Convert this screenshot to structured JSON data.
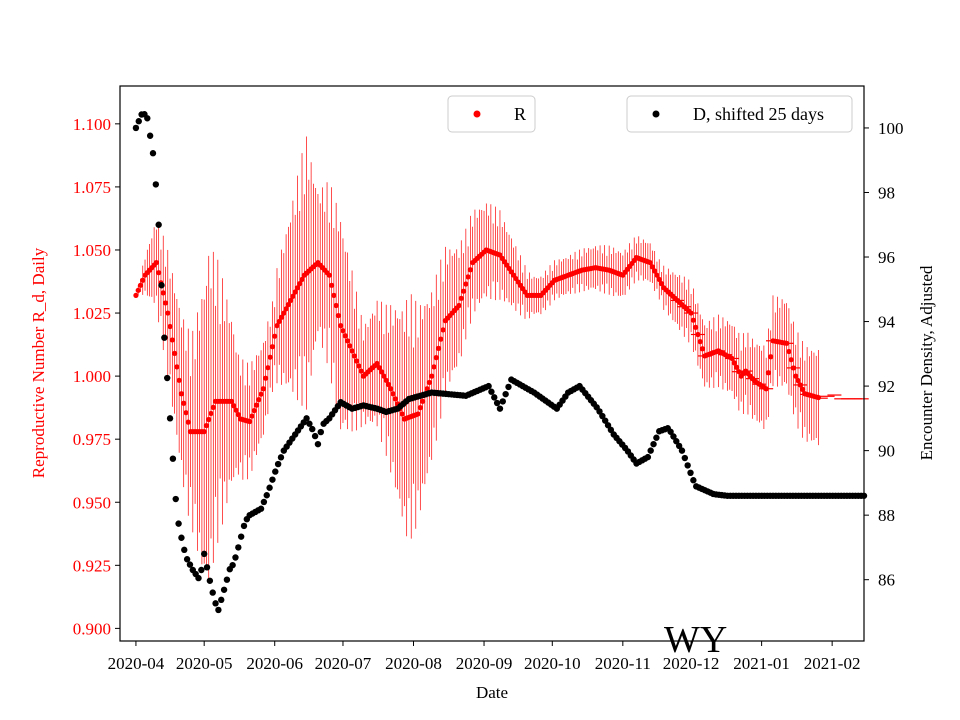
{
  "chart_data": {
    "type": "line",
    "title": "",
    "xlabel": "Date",
    "ylabel_left": "Reproductive Number R_d, Daily",
    "ylabel_right": "Encounter Density, Adjusted",
    "watermark": "WY",
    "x_ticks": [
      "2020-04",
      "2020-05",
      "2020-06",
      "2020-07",
      "2020-08",
      "2020-09",
      "2020-10",
      "2020-11",
      "2020-12",
      "2021-01",
      "2021-02"
    ],
    "x_range_days": [
      -7,
      320
    ],
    "y_left_range": [
      0.895,
      1.115
    ],
    "y_left_ticks": [
      "0.900",
      "0.925",
      "0.950",
      "0.975",
      "1.000",
      "1.025",
      "1.050",
      "1.075",
      "1.100"
    ],
    "y_right_range": [
      84.1,
      101.3
    ],
    "y_right_ticks": [
      "86",
      "88",
      "90",
      "92",
      "94",
      "96",
      "98",
      "100"
    ],
    "legend_R": "R",
    "legend_D": "D, shifted 25 days",
    "colors": {
      "R": "#ff0000",
      "D": "#000000",
      "axis_left": "#ff0000",
      "axis_right": "#000000"
    },
    "series": [
      {
        "name": "R",
        "axis": "left",
        "knots_day": [
          0,
          4,
          9,
          14,
          20,
          24,
          30,
          35,
          42,
          46,
          50,
          56,
          62,
          68,
          74,
          80,
          85,
          90,
          95,
          100,
          106,
          112,
          118,
          124,
          130,
          136,
          142,
          148,
          154,
          160,
          166,
          172,
          178,
          184,
          190,
          196,
          202,
          208,
          214,
          220,
          226,
          232,
          238,
          244,
          250,
          256,
          262,
          266,
          268,
          272,
          277,
          280,
          286,
          290,
          294,
          298,
          302,
          306,
          310,
          316,
          320
        ],
        "knots_value": [
          1.032,
          1.04,
          1.045,
          1.025,
          0.993,
          0.978,
          0.978,
          0.99,
          0.99,
          0.983,
          0.982,
          0.995,
          1.02,
          1.03,
          1.04,
          1.045,
          1.04,
          1.02,
          1.01,
          1.0,
          1.005,
          0.995,
          0.983,
          0.985,
          1.0,
          1.022,
          1.028,
          1.045,
          1.05,
          1.048,
          1.04,
          1.032,
          1.032,
          1.038,
          1.04,
          1.042,
          1.043,
          1.042,
          1.04,
          1.047,
          1.045,
          1.035,
          1.03,
          1.025,
          1.008,
          1.01,
          1.007,
          1.0,
          1.002,
          0.998,
          0.995,
          1.014,
          1.013,
          1.0,
          0.993,
          0.992,
          0.991,
          0.993,
          0.991,
          0.991,
          0.991
        ],
        "error_knots_day": [
          0,
          10,
          25,
          32,
          45,
          60,
          75,
          80,
          90,
          100,
          110,
          120,
          130,
          145,
          160,
          175,
          190,
          210,
          230,
          240,
          260,
          280,
          300,
          320
        ],
        "error_knots_half": [
          0.0,
          0.02,
          0.04,
          0.07,
          0.025,
          0.018,
          0.055,
          0.03,
          0.045,
          0.02,
          0.03,
          0.05,
          0.035,
          0.022,
          0.018,
          0.008,
          0.008,
          0.01,
          0.008,
          0.012,
          0.015,
          0.018,
          0.02,
          0.018
        ]
      },
      {
        "name": "D, shifted 25 days",
        "axis": "right",
        "knots_day": [
          0,
          3,
          5,
          8,
          10,
          12,
          14,
          16,
          18,
          20,
          22,
          25,
          28,
          30,
          33,
          36,
          38,
          40,
          41,
          43,
          45,
          48,
          50,
          55,
          58,
          62,
          65,
          70,
          75,
          78,
          80,
          82,
          85,
          90,
          95,
          100,
          106,
          110,
          115,
          120,
          130,
          145,
          155,
          160,
          165,
          175,
          185,
          190,
          195,
          203,
          210,
          216,
          220,
          225,
          230,
          234,
          240,
          246,
          254,
          260,
          270,
          320
        ],
        "knots_value": [
          100.0,
          100.5,
          100.3,
          99.0,
          97.0,
          94.0,
          92.0,
          90.0,
          88.0,
          87.3,
          86.7,
          86.3,
          86.0,
          86.8,
          85.8,
          85.0,
          85.5,
          86.0,
          86.3,
          86.5,
          87.0,
          87.8,
          88.0,
          88.2,
          88.7,
          89.5,
          90.0,
          90.5,
          91.0,
          90.6,
          90.2,
          90.8,
          91.0,
          91.5,
          91.3,
          91.4,
          91.3,
          91.2,
          91.3,
          91.6,
          91.8,
          91.7,
          92.0,
          91.3,
          92.2,
          91.8,
          91.3,
          91.8,
          92.0,
          91.3,
          90.5,
          90.0,
          89.6,
          89.8,
          90.6,
          90.7,
          90.0,
          88.9,
          88.65,
          88.6,
          88.6,
          88.6
        ]
      }
    ]
  }
}
